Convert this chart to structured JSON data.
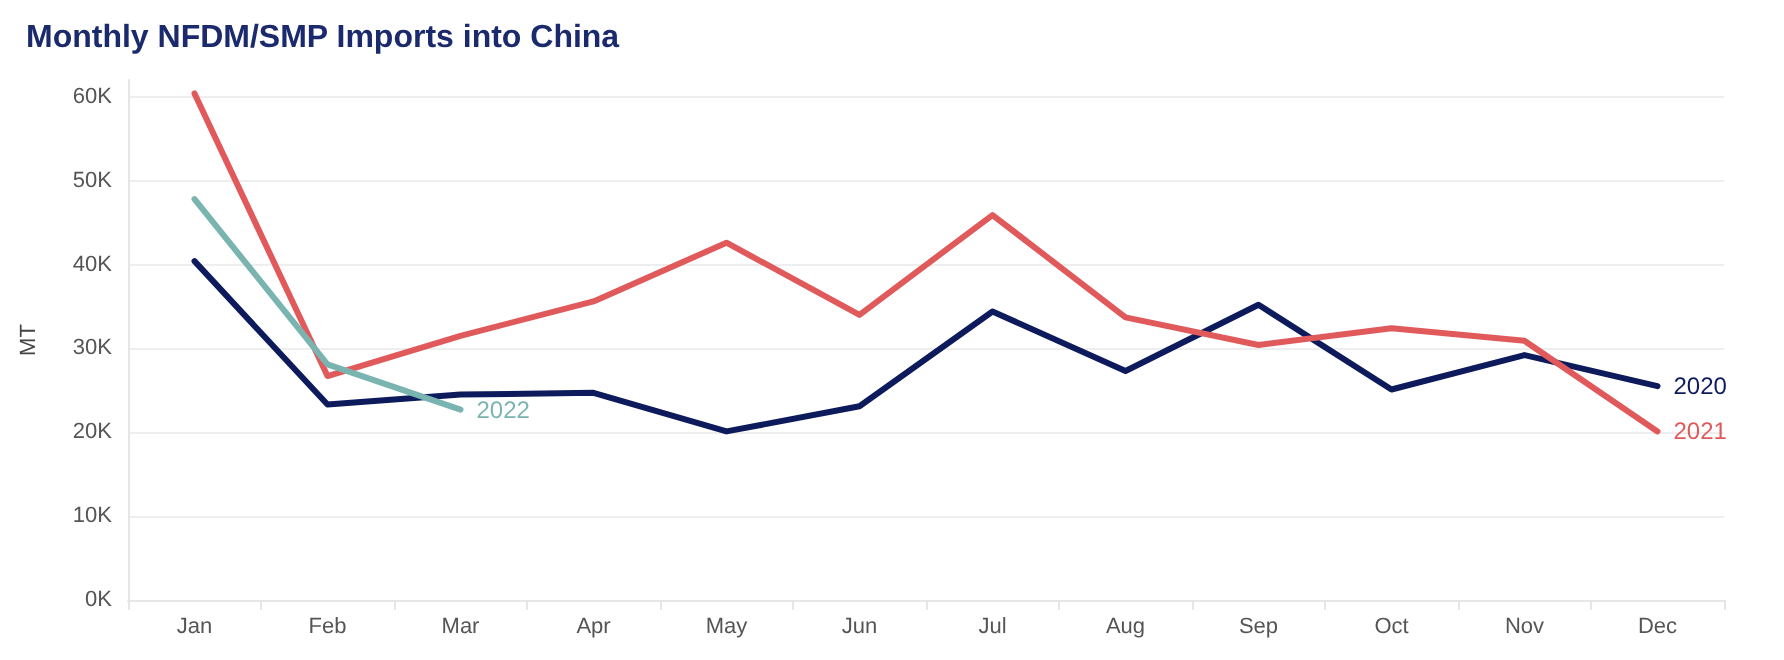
{
  "chart_data": {
    "type": "line",
    "title": "Monthly NFDM/SMP Imports into China",
    "ylabel": "MT",
    "categories": [
      "Jan",
      "Feb",
      "Mar",
      "Apr",
      "May",
      "Jun",
      "Jul",
      "Aug",
      "Sep",
      "Oct",
      "Nov",
      "Dec"
    ],
    "series": [
      {
        "name": "2020",
        "color": "#0d1a5c",
        "values": [
          40400,
          23300,
          24500,
          24700,
          20100,
          23100,
          34400,
          27300,
          35200,
          25100,
          29200,
          25500
        ]
      },
      {
        "name": "2021",
        "color": "#e05a5c",
        "values": [
          60400,
          26700,
          31500,
          35600,
          42600,
          34000,
          45900,
          33700,
          30400,
          32400,
          30900,
          20100
        ]
      },
      {
        "name": "2022",
        "color": "#7ab4b0",
        "values": [
          47800,
          28100,
          22700,
          null,
          null,
          null,
          null,
          null,
          null,
          null,
          null,
          null
        ]
      }
    ],
    "ylim": [
      0,
      62000
    ],
    "yticks": [
      {
        "value": 0,
        "label": "0K"
      },
      {
        "value": 10000,
        "label": "10K"
      },
      {
        "value": 20000,
        "label": "20K"
      },
      {
        "value": 30000,
        "label": "30K"
      },
      {
        "value": 40000,
        "label": "40K"
      },
      {
        "value": 50000,
        "label": "50K"
      },
      {
        "value": 60000,
        "label": "60K"
      }
    ],
    "grid": "y",
    "legend": false,
    "marker": "none",
    "line_style": "solid"
  }
}
